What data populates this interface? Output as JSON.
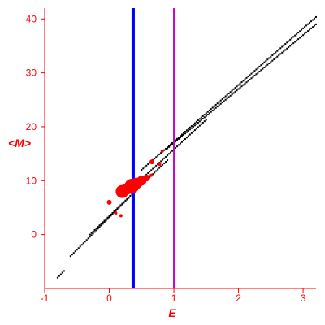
{
  "chart_data": {
    "type": "scatter",
    "title": "",
    "xlabel": "E",
    "ylabel": "<M>",
    "xlim": [
      -1,
      3.2
    ],
    "ylim": [
      -10,
      42
    ],
    "x_ticks": [
      -1,
      0,
      1,
      2,
      3
    ],
    "y_ticks": [
      0,
      10,
      20,
      30,
      40
    ],
    "grid": false,
    "colors": {
      "axis": "#ff0000",
      "background_points": "#000000",
      "highlight_points": "#ff0000",
      "line_blue": "#0000ff",
      "line_magenta": "#cc00cc"
    },
    "vertical_lines": [
      {
        "x": 0.37,
        "color": "#0000ff"
      },
      {
        "x": 1.0,
        "color": "#cc00cc"
      }
    ],
    "background_bands": [
      {
        "x_start": -0.8,
        "x_end": -0.7,
        "y_start": -8,
        "slope": 12.5
      },
      {
        "x_start": -0.6,
        "x_end": 0.3,
        "y_start": -4,
        "slope": 12.0
      },
      {
        "x_start": -0.3,
        "x_end": 0.9,
        "y_start": 0,
        "slope": 11.5
      },
      {
        "x_start": 0.2,
        "x_end": 1.5,
        "y_start": 7,
        "slope": 11.0
      },
      {
        "x_start": 0.5,
        "x_end": 3.2,
        "y_start": 12,
        "slope": 10.5
      },
      {
        "x_start": 0.9,
        "x_end": 3.2,
        "y_start": 16,
        "slope": 10.0
      }
    ],
    "highlight_points": [
      {
        "x": 0.0,
        "y": 6,
        "r": 3
      },
      {
        "x": 0.1,
        "y": 4,
        "r": 2
      },
      {
        "x": 0.18,
        "y": 3.5,
        "r": 2
      },
      {
        "x": 0.2,
        "y": 8,
        "r": 8
      },
      {
        "x": 0.28,
        "y": 8.5,
        "r": 7
      },
      {
        "x": 0.35,
        "y": 9,
        "r": 9
      },
      {
        "x": 0.42,
        "y": 9.5,
        "r": 7
      },
      {
        "x": 0.5,
        "y": 10,
        "r": 6
      },
      {
        "x": 0.58,
        "y": 10.5,
        "r": 4
      },
      {
        "x": 0.65,
        "y": 11,
        "r": 2
      },
      {
        "x": 0.66,
        "y": 13.5,
        "r": 3
      },
      {
        "x": 0.78,
        "y": 13,
        "r": 2
      },
      {
        "x": 0.82,
        "y": 15.5,
        "r": 2
      }
    ]
  }
}
